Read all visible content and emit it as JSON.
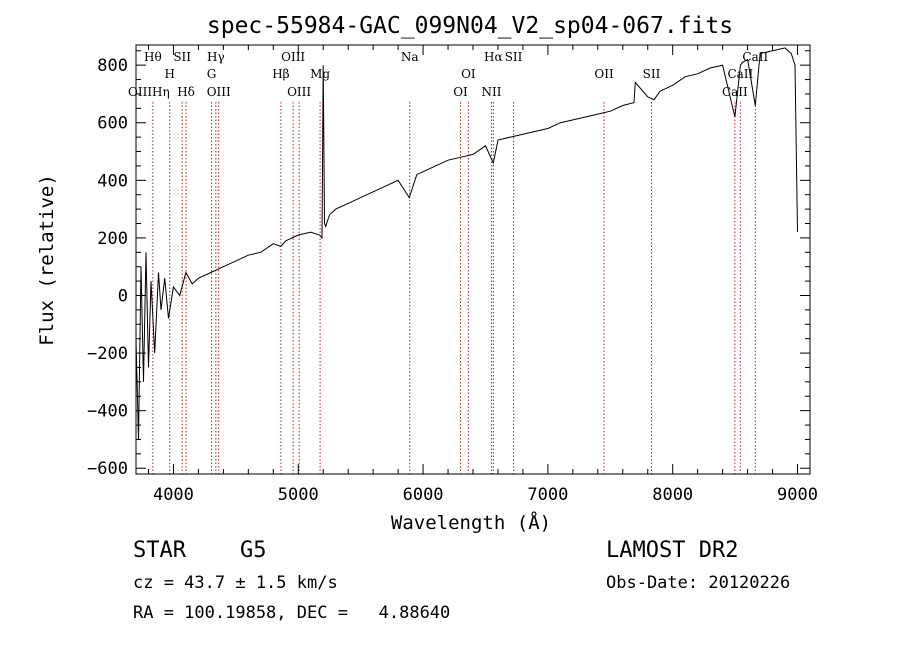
{
  "chart_data": {
    "type": "line",
    "title": "spec-55984-GAC_099N04_V2_sp04-067.fits",
    "xlabel": "Wavelength (Å)",
    "ylabel": "Flux (relative)",
    "xlim": [
      3700,
      9100
    ],
    "ylim": [
      -620,
      870
    ],
    "x_ticks": [
      4000,
      5000,
      6000,
      7000,
      8000,
      9000
    ],
    "y_ticks": [
      -600,
      -400,
      -200,
      0,
      200,
      400,
      600,
      800
    ],
    "grid": false,
    "series": [
      {
        "x": [
          3700,
          3720,
          3740,
          3760,
          3780,
          3800,
          3820,
          3850,
          3880,
          3900,
          3930,
          3960,
          4000,
          4050,
          4100,
          4150,
          4200,
          4300,
          4400,
          4500,
          4600,
          4700,
          4800,
          4860,
          4900,
          5000,
          5100,
          5170,
          5190,
          5200,
          5210,
          5220,
          5250,
          5300,
          5400,
          5500,
          5600,
          5700,
          5800,
          5890,
          5950,
          6000,
          6100,
          6200,
          6300,
          6400,
          6500,
          6563,
          6600,
          6700,
          6800,
          6900,
          7000,
          7100,
          7200,
          7300,
          7400,
          7500,
          7600,
          7690,
          7700,
          7800,
          7850,
          7900,
          8000,
          8100,
          8200,
          8300,
          8400,
          8498,
          8542,
          8560,
          8600,
          8662,
          8700,
          8800,
          8900,
          8950,
          8980,
          9000
        ],
        "y": [
          -150,
          -500,
          100,
          -300,
          150,
          -250,
          50,
          -200,
          80,
          -50,
          60,
          -80,
          30,
          0,
          80,
          40,
          60,
          80,
          100,
          120,
          140,
          150,
          180,
          170,
          190,
          210,
          220,
          210,
          200,
          800,
          250,
          240,
          280,
          300,
          320,
          340,
          360,
          380,
          400,
          340,
          420,
          430,
          450,
          470,
          480,
          490,
          520,
          460,
          540,
          550,
          560,
          570,
          580,
          600,
          610,
          620,
          630,
          640,
          660,
          670,
          740,
          690,
          680,
          710,
          730,
          760,
          770,
          790,
          800,
          620,
          800,
          810,
          820,
          660,
          840,
          850,
          860,
          840,
          800,
          220
        ]
      }
    ],
    "line_labels": [
      {
        "wave": 3835,
        "text": "Hθ",
        "row": 1
      },
      {
        "wave": 3970,
        "text": "H",
        "row": 2
      },
      {
        "wave": 4070,
        "text": "SII",
        "row": 1
      },
      {
        "wave": 4101,
        "text": "Hδ",
        "row": 3
      },
      {
        "wave": 4305,
        "text": "G",
        "row": 2
      },
      {
        "wave": 4340,
        "text": "Hγ",
        "row": 1
      },
      {
        "wave": 4363,
        "text": "OIII",
        "row": 3
      },
      {
        "wave": 4861,
        "text": "Hβ",
        "row": 2
      },
      {
        "wave": 4959,
        "text": "OIII",
        "row": 1
      },
      {
        "wave": 5007,
        "text": "OIII",
        "row": 3
      },
      {
        "wave": 5175,
        "text": "Mg",
        "row": 2
      },
      {
        "wave": 5893,
        "text": "Na",
        "row": 1
      },
      {
        "wave": 6300,
        "text": "OI",
        "row": 3
      },
      {
        "wave": 6363,
        "text": "OI",
        "row": 2
      },
      {
        "wave": 6548,
        "text": "NII",
        "row": 3
      },
      {
        "wave": 6563,
        "text": "Hα",
        "row": 1
      },
      {
        "wave": 6725,
        "text": "SII",
        "row": 1
      },
      {
        "wave": 7450,
        "text": "OII",
        "row": 2
      },
      {
        "wave": 7830,
        "text": "SII",
        "row": 2
      },
      {
        "wave": 8498,
        "text": "CaII",
        "row": 3
      },
      {
        "wave": 8542,
        "text": "CaII",
        "row": 2
      },
      {
        "wave": 8662,
        "text": "CaII",
        "row": 1
      }
    ],
    "left_label": "OIIIHη"
  },
  "info": {
    "object_class": "STAR",
    "subclass": "G5",
    "survey": "LAMOST DR2",
    "redshift": "cz = 43.7 ± 1.5 km/s",
    "obs_date": "Obs-Date: 20120226",
    "coords": "RA = 100.19858, DEC =   4.88640"
  },
  "colors": {
    "spectrum": "#000000",
    "line_markers": "#b22222",
    "axes": "#000000"
  }
}
